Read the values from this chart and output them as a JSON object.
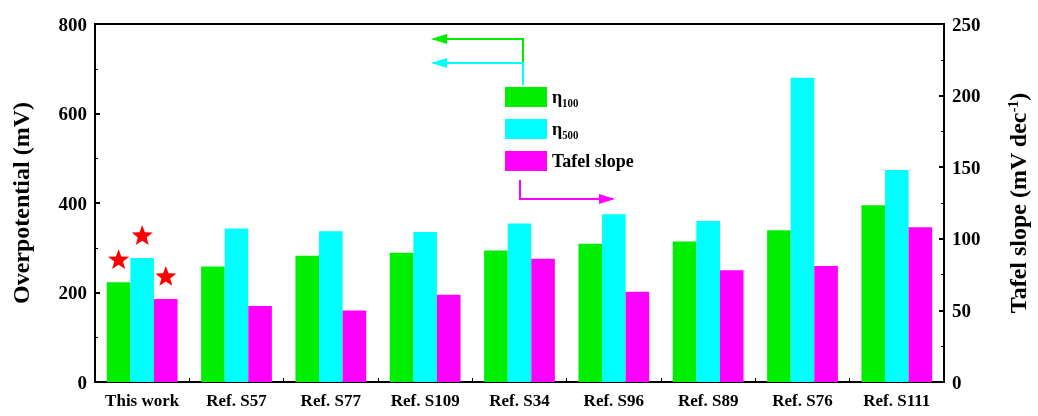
{
  "chart_data": {
    "type": "bar",
    "categories": [
      "This work",
      "Ref. S57",
      "Ref. S77",
      "Ref. S109",
      "Ref. S34",
      "Ref. S96",
      "Ref. S89",
      "Ref. S76",
      "Ref. S111"
    ],
    "series": [
      {
        "name": "η₁₀₀",
        "color": "#00ee00",
        "values": [
          223,
          258,
          282,
          289,
          294,
          309,
          314,
          339,
          395
        ]
      },
      {
        "name": "η₅₀₀",
        "color": "#00ffff",
        "values": [
          277,
          343,
          337,
          335,
          354,
          375,
          360,
          680,
          474
        ]
      },
      {
        "name": "Tafel slope",
        "color": "#ff00ff",
        "axis": "y2",
        "values": [
          58,
          53,
          50,
          61,
          86,
          63,
          78,
          81,
          108
        ]
      }
    ],
    "ylabel": "Overpotential (mV)",
    "y2label": "Tafel slope (mV dec$^{-1}$)",
    "ylim": [
      0,
      800
    ],
    "yticks": [
      0,
      200,
      400,
      600,
      800
    ],
    "y2lim": [
      0,
      250
    ],
    "y2ticks": [
      0,
      50,
      100,
      150,
      200,
      250
    ],
    "legend": "top",
    "grid": false
  }
}
